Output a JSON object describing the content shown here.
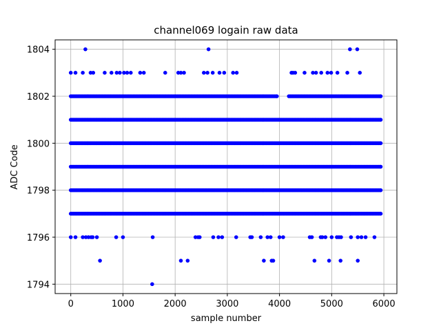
{
  "chart_data": {
    "type": "scatter",
    "title": "channel069 logain raw data",
    "xlabel": "sample number",
    "ylabel": "ADC Code",
    "xlim": [
      -300,
      6250
    ],
    "ylim": [
      1793.6,
      1804.4
    ],
    "xticks": [
      0,
      1000,
      2000,
      3000,
      4000,
      5000,
      6000
    ],
    "yticks": [
      1794,
      1796,
      1798,
      1800,
      1802,
      1804
    ],
    "grid": true,
    "marker_color": "#0000ff",
    "series": [
      {
        "name": "",
        "bands": [
          {
            "y": 1797,
            "x_from": 0,
            "x_to": 5940
          },
          {
            "y": 1798,
            "x_from": 0,
            "x_to": 5940
          },
          {
            "y": 1799,
            "x_from": 0,
            "x_to": 5940
          },
          {
            "y": 1800,
            "x_from": 0,
            "x_to": 5940
          },
          {
            "y": 1801,
            "x_from": 0,
            "x_to": 5940
          },
          {
            "y": 1802,
            "x_from": 0,
            "x_to": 3950
          },
          {
            "y": 1802,
            "x_from": 4180,
            "x_to": 5940
          }
        ],
        "points": [
          [
            280,
            1804
          ],
          [
            2640,
            1804
          ],
          [
            5350,
            1804
          ],
          [
            5490,
            1804
          ],
          [
            0,
            1803
          ],
          [
            90,
            1803
          ],
          [
            230,
            1803
          ],
          [
            380,
            1803
          ],
          [
            430,
            1803
          ],
          [
            650,
            1803
          ],
          [
            780,
            1803
          ],
          [
            880,
            1803
          ],
          [
            940,
            1803
          ],
          [
            1020,
            1803
          ],
          [
            1080,
            1803
          ],
          [
            1150,
            1803
          ],
          [
            1330,
            1803
          ],
          [
            1400,
            1803
          ],
          [
            1810,
            1803
          ],
          [
            2060,
            1803
          ],
          [
            2110,
            1803
          ],
          [
            2170,
            1803
          ],
          [
            2550,
            1803
          ],
          [
            2620,
            1803
          ],
          [
            2720,
            1803
          ],
          [
            2850,
            1803
          ],
          [
            2940,
            1803
          ],
          [
            3110,
            1803
          ],
          [
            3180,
            1803
          ],
          [
            4230,
            1803
          ],
          [
            4260,
            1803
          ],
          [
            4300,
            1803
          ],
          [
            4480,
            1803
          ],
          [
            4640,
            1803
          ],
          [
            4700,
            1803
          ],
          [
            4800,
            1803
          ],
          [
            4920,
            1803
          ],
          [
            4990,
            1803
          ],
          [
            5110,
            1803
          ],
          [
            5300,
            1803
          ],
          [
            5540,
            1803
          ],
          [
            0,
            1796
          ],
          [
            90,
            1796
          ],
          [
            230,
            1796
          ],
          [
            290,
            1796
          ],
          [
            340,
            1796
          ],
          [
            390,
            1796
          ],
          [
            420,
            1796
          ],
          [
            500,
            1796
          ],
          [
            870,
            1796
          ],
          [
            1000,
            1796
          ],
          [
            1570,
            1796
          ],
          [
            2390,
            1796
          ],
          [
            2440,
            1796
          ],
          [
            2470,
            1796
          ],
          [
            2730,
            1796
          ],
          [
            2830,
            1796
          ],
          [
            2900,
            1796
          ],
          [
            3170,
            1796
          ],
          [
            3440,
            1796
          ],
          [
            3470,
            1796
          ],
          [
            3640,
            1796
          ],
          [
            3770,
            1796
          ],
          [
            3830,
            1796
          ],
          [
            4000,
            1796
          ],
          [
            4070,
            1796
          ],
          [
            4580,
            1796
          ],
          [
            4620,
            1796
          ],
          [
            4790,
            1796
          ],
          [
            4820,
            1796
          ],
          [
            4880,
            1796
          ],
          [
            5000,
            1796
          ],
          [
            5100,
            1796
          ],
          [
            5140,
            1796
          ],
          [
            5180,
            1796
          ],
          [
            5370,
            1796
          ],
          [
            5500,
            1796
          ],
          [
            5570,
            1796
          ],
          [
            5650,
            1796
          ],
          [
            5820,
            1796
          ],
          [
            560,
            1795
          ],
          [
            2110,
            1795
          ],
          [
            2240,
            1795
          ],
          [
            3700,
            1795
          ],
          [
            3850,
            1795
          ],
          [
            3880,
            1795
          ],
          [
            4670,
            1795
          ],
          [
            4950,
            1795
          ],
          [
            5170,
            1795
          ],
          [
            5500,
            1795
          ],
          [
            1560,
            1794
          ]
        ]
      }
    ]
  }
}
